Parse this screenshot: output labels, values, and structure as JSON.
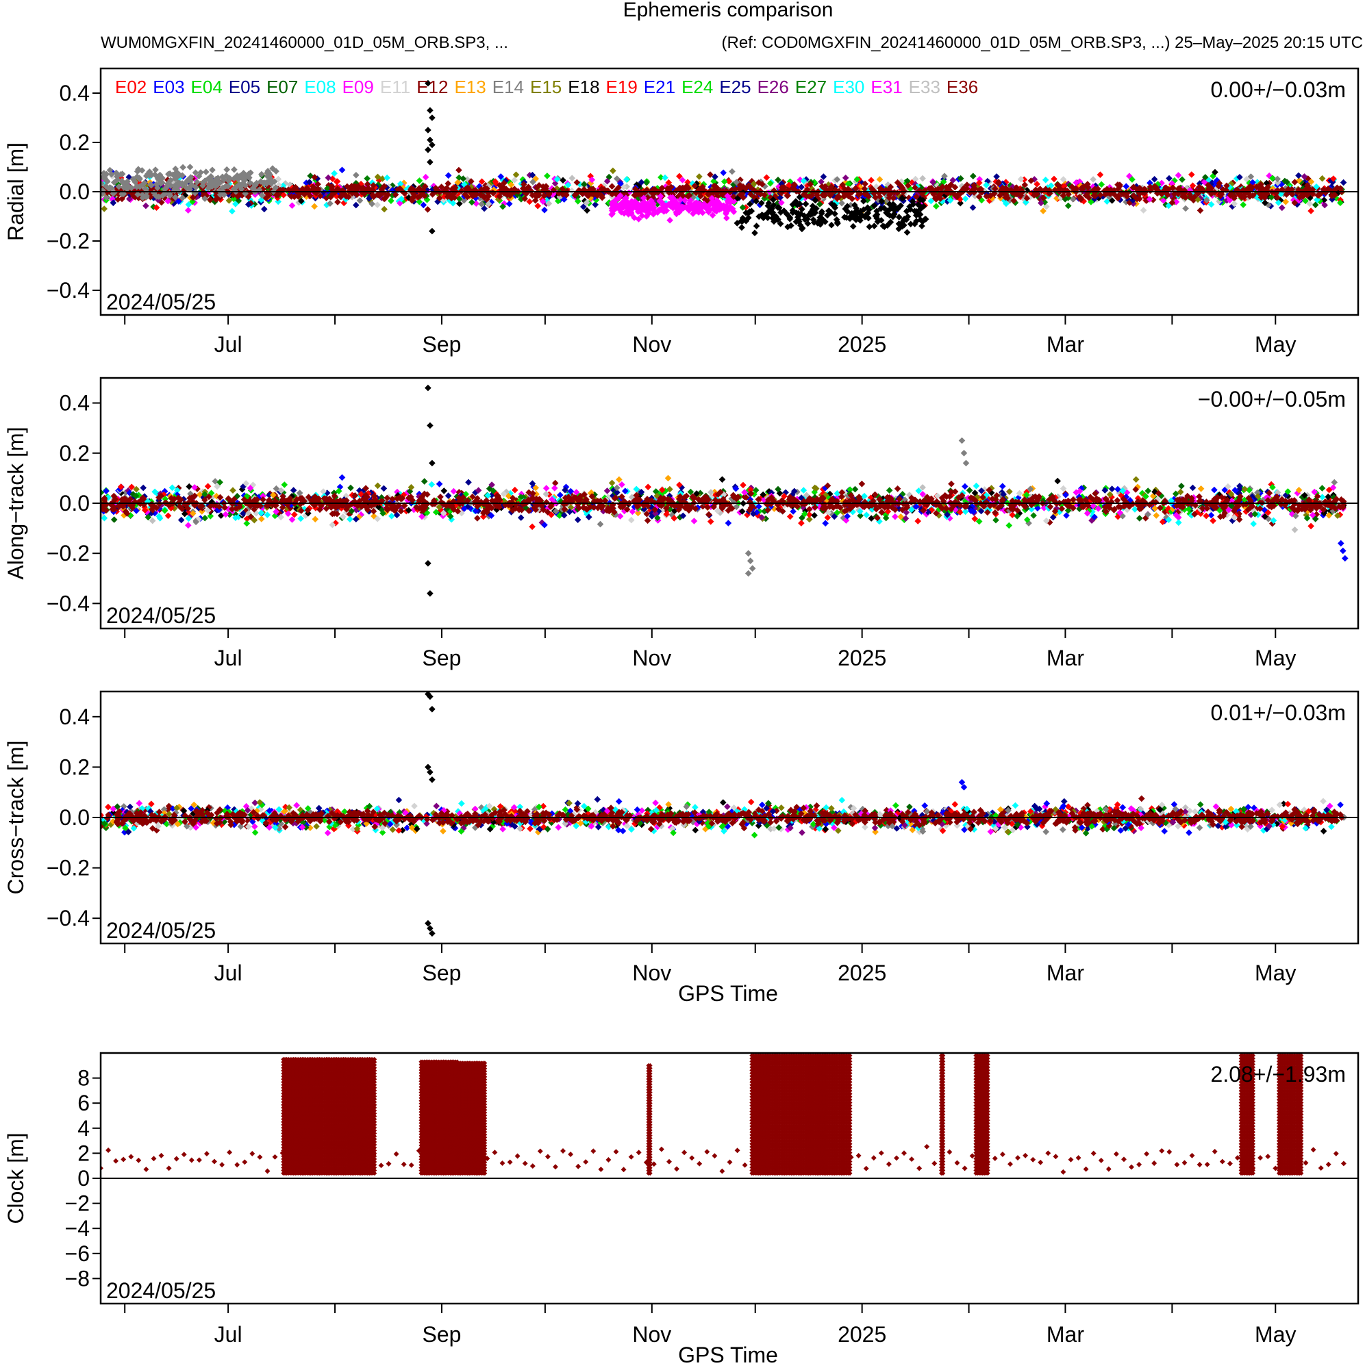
{
  "title": "Ephemeris comparison",
  "subtitle_left": "WUM0MGXFIN_20241460000_01D_05M_ORB.SP3, ...",
  "subtitle_right": "(Ref: COD0MGXFIN_20241460000_01D_05M_ORB.SP3, ...) 25–May–2025 20:15 UTC",
  "date_label": "2024/05/25",
  "colors": {
    "E02": "#ff0000",
    "E03": "#0000ff",
    "E04": "#00dd00",
    "E05": "#00008b",
    "E07": "#006400",
    "E08": "#00ffff",
    "E09": "#ff00ff",
    "E11": "#d3d3d3",
    "E12": "#8b0000",
    "E13": "#ffa500",
    "E14": "#808080",
    "E15": "#808000",
    "E18": "#000000",
    "E19": "#ff0000",
    "E21": "#0000ff",
    "E24": "#00dd00",
    "E25": "#00008b",
    "E26": "#800080",
    "E27": "#008000",
    "E30": "#00ffff",
    "E31": "#ff00ff",
    "E33": "#c0c0c0",
    "E36": "#8b0000"
  },
  "chart_data": [
    {
      "type": "scatter",
      "panel": "radial",
      "ylabel": "Radial [m]",
      "xlabel": "",
      "ylim": [
        -0.5,
        0.5
      ],
      "yticks": [
        "0.4",
        "0.2",
        "0.0",
        "−0.2",
        "−0.4"
      ],
      "ytick_values": [
        0.4,
        0.2,
        0.0,
        -0.2,
        -0.4
      ],
      "x_start": "2024-05-25",
      "x_end": "2025-05-25",
      "xticks": [
        "Jul",
        "Sep",
        "Nov",
        "2025",
        "Mar",
        "May"
      ],
      "xtick_dates": [
        "2024-07-01",
        "2024-09-01",
        "2024-11-01",
        "2025-01-01",
        "2025-03-01",
        "2025-05-01"
      ],
      "minor_tick_dates": [
        "2024-06-01",
        "2024-08-01",
        "2024-10-01",
        "2024-12-01",
        "2025-02-01",
        "2025-04-01"
      ],
      "stats": "0.00+/−0.03m",
      "series": [
        "E02",
        "E03",
        "E04",
        "E05",
        "E07",
        "E08",
        "E09",
        "E11",
        "E12",
        "E13",
        "E14",
        "E15",
        "E18",
        "E19",
        "E21",
        "E24",
        "E25",
        "E26",
        "E27",
        "E30",
        "E31",
        "E33",
        "E36"
      ],
      "band": {
        "center": 0.0,
        "spread": 0.03
      },
      "features": [
        {
          "series": "E18",
          "from": "2024-11-25",
          "to": "2025-01-20",
          "center": -0.09,
          "spread": 0.03
        },
        {
          "series": "E31",
          "from": "2024-10-20",
          "to": "2024-11-25",
          "center": -0.06,
          "spread": 0.02
        },
        {
          "series": "E14",
          "from": "2024-05-25",
          "to": "2024-07-15",
          "center": 0.04,
          "spread": 0.03
        }
      ],
      "outliers": [
        {
          "series": "E18",
          "date": "2024-08-28",
          "y": [
            0.44,
            0.33,
            0.3,
            0.25,
            0.21,
            0.19,
            0.17,
            0.12,
            -0.16
          ]
        }
      ]
    },
    {
      "type": "scatter",
      "panel": "along-track",
      "ylabel": "Along−track [m]",
      "xlabel": "",
      "ylim": [
        -0.5,
        0.5
      ],
      "yticks": [
        "0.4",
        "0.2",
        "0.0",
        "−0.2",
        "−0.4"
      ],
      "ytick_values": [
        0.4,
        0.2,
        0.0,
        -0.2,
        -0.4
      ],
      "x_start": "2024-05-25",
      "x_end": "2025-05-25",
      "xticks": [
        "Jul",
        "Sep",
        "Nov",
        "2025",
        "Mar",
        "May"
      ],
      "xtick_dates": [
        "2024-07-01",
        "2024-09-01",
        "2024-11-01",
        "2025-01-01",
        "2025-03-01",
        "2025-05-01"
      ],
      "minor_tick_dates": [
        "2024-06-01",
        "2024-08-01",
        "2024-10-01",
        "2024-12-01",
        "2025-02-01",
        "2025-04-01"
      ],
      "stats": "−0.00+/−0.05m",
      "series": [
        "E02",
        "E03",
        "E04",
        "E05",
        "E07",
        "E08",
        "E09",
        "E11",
        "E12",
        "E13",
        "E14",
        "E15",
        "E18",
        "E19",
        "E21",
        "E24",
        "E25",
        "E26",
        "E27",
        "E30",
        "E31",
        "E33",
        "E36"
      ],
      "band": {
        "center": 0.0,
        "spread": 0.035
      },
      "features": [],
      "outliers": [
        {
          "series": "E18",
          "date": "2024-08-28",
          "y": [
            0.46,
            0.31,
            0.16,
            -0.24,
            -0.36
          ]
        },
        {
          "series": "E14",
          "date": "2024-11-29",
          "y": [
            -0.2,
            -0.23,
            -0.26,
            -0.28
          ]
        },
        {
          "series": "E14",
          "date": "2025-01-30",
          "y": [
            0.25,
            0.2,
            0.16
          ]
        },
        {
          "series": "E03",
          "date": "2025-05-20",
          "y": [
            -0.16,
            -0.19,
            -0.22
          ]
        }
      ]
    },
    {
      "type": "scatter",
      "panel": "cross-track",
      "ylabel": "Cross−track [m]",
      "xlabel": "GPS Time",
      "ylim": [
        -0.5,
        0.5
      ],
      "yticks": [
        "0.4",
        "0.2",
        "0.0",
        "−0.2",
        "−0.4"
      ],
      "ytick_values": [
        0.4,
        0.2,
        0.0,
        -0.2,
        -0.4
      ],
      "x_start": "2024-05-25",
      "x_end": "2025-05-25",
      "xticks": [
        "Jul",
        "Sep",
        "Nov",
        "2025",
        "Mar",
        "May"
      ],
      "xtick_dates": [
        "2024-07-01",
        "2024-09-01",
        "2024-11-01",
        "2025-01-01",
        "2025-03-01",
        "2025-05-01"
      ],
      "minor_tick_dates": [
        "2024-06-01",
        "2024-08-01",
        "2024-10-01",
        "2024-12-01",
        "2025-02-01",
        "2025-04-01"
      ],
      "stats": "0.01+/−0.03m",
      "series": [
        "E02",
        "E03",
        "E04",
        "E05",
        "E07",
        "E08",
        "E09",
        "E11",
        "E12",
        "E13",
        "E14",
        "E15",
        "E18",
        "E19",
        "E21",
        "E24",
        "E25",
        "E26",
        "E27",
        "E30",
        "E31",
        "E33",
        "E36"
      ],
      "band": {
        "center": 0.0,
        "spread": 0.025
      },
      "features": [],
      "outliers": [
        {
          "series": "E18",
          "date": "2024-08-28",
          "y": [
            0.49,
            0.48,
            0.43,
            0.2,
            0.18,
            0.15,
            -0.42,
            -0.44,
            -0.46
          ]
        },
        {
          "series": "E03",
          "date": "2025-01-30",
          "y": [
            0.14,
            0.12
          ]
        }
      ]
    },
    {
      "type": "scatter",
      "panel": "clock",
      "ylabel": "Clock [m]",
      "xlabel": "GPS Time",
      "ylim": [
        -10,
        10
      ],
      "yticks": [
        "8",
        "6",
        "4",
        "2",
        "0",
        "−2",
        "−4",
        "−6",
        "−8"
      ],
      "ytick_values": [
        8,
        6,
        4,
        2,
        0,
        -2,
        -4,
        -6,
        -8
      ],
      "x_start": "2024-05-25",
      "x_end": "2025-05-25",
      "xticks": [
        "Jul",
        "Sep",
        "Nov",
        "2025",
        "Mar",
        "May"
      ],
      "xtick_dates": [
        "2024-07-01",
        "2024-09-01",
        "2024-11-01",
        "2025-01-01",
        "2025-03-01",
        "2025-05-01"
      ],
      "minor_tick_dates": [
        "2024-06-01",
        "2024-08-01",
        "2024-10-01",
        "2024-12-01",
        "2025-02-01",
        "2025-04-01"
      ],
      "stats": "2.08+/−1.93m",
      "series": [
        "E36"
      ],
      "baseline": 1.5,
      "daily_jumps": [
        {
          "from": "2024-07-17",
          "to": "2024-08-12",
          "top": 9.5
        },
        {
          "from": "2024-08-26",
          "to": "2024-09-05",
          "top": 9.3
        },
        {
          "from": "2024-09-06",
          "to": "2024-09-13",
          "top": 9.2
        },
        {
          "from": "2024-10-31",
          "to": "2024-10-31",
          "top": 9.0
        },
        {
          "from": "2024-11-30",
          "to": "2024-12-28",
          "top": 9.8
        },
        {
          "from": "2025-01-24",
          "to": "2025-01-24",
          "top": 9.8
        },
        {
          "from": "2025-02-03",
          "to": "2025-02-06",
          "top": 9.8
        },
        {
          "from": "2025-04-21",
          "to": "2025-04-24",
          "top": 9.8
        },
        {
          "from": "2025-05-02",
          "to": "2025-05-08",
          "top": 9.8
        }
      ]
    }
  ]
}
